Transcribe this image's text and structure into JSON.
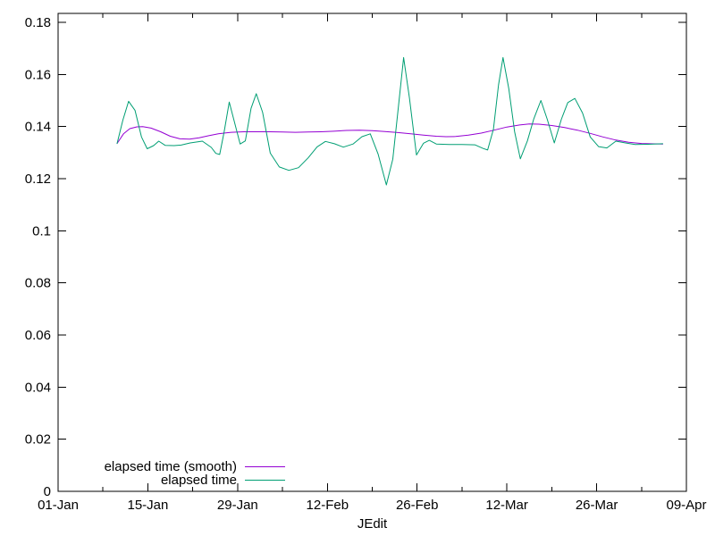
{
  "chart_data": {
    "type": "line",
    "title": "JEdit",
    "title_position": "bottom-center",
    "background": "#ffffff",
    "axis_color": "#000000",
    "grid": false,
    "legend": {
      "position": "bottom-left-inside",
      "entries": [
        "elapsed time (smooth)",
        "elapsed time"
      ]
    },
    "x_axis": {
      "label": "",
      "tick_labels": [
        "01-Jan",
        "15-Jan",
        "29-Jan",
        "12-Feb",
        "26-Feb",
        "12-Mar",
        "26-Mar",
        "09-Apr"
      ],
      "tick_days": [
        0,
        14,
        28,
        42,
        56,
        70,
        84,
        98
      ],
      "minor_tick_days": [
        7,
        21,
        35,
        49,
        63,
        77,
        91
      ],
      "range_days": [
        0,
        98
      ]
    },
    "y_axis": {
      "label": "",
      "tick_labels": [
        "0",
        "0.02",
        "0.04",
        "0.06",
        "0.08",
        "0.1",
        "0.12",
        "0.14",
        "0.16",
        "0.18"
      ],
      "tick_values": [
        0,
        0.02,
        0.04,
        0.06,
        0.08,
        0.1,
        0.12,
        0.14,
        0.16,
        0.18
      ],
      "range": [
        0,
        0.1835
      ]
    },
    "series": [
      {
        "name": "elapsed time (smooth)",
        "color": "#9400d3",
        "points": [
          [
            9.2,
            0.1335
          ],
          [
            10.2,
            0.1372
          ],
          [
            11.2,
            0.1392
          ],
          [
            12.3,
            0.1399
          ],
          [
            13.2,
            0.14
          ],
          [
            14.5,
            0.1394
          ],
          [
            16.0,
            0.138
          ],
          [
            17.5,
            0.1363
          ],
          [
            19.0,
            0.1353
          ],
          [
            20.5,
            0.1352
          ],
          [
            22.0,
            0.1357
          ],
          [
            23.5,
            0.1365
          ],
          [
            25.0,
            0.1372
          ],
          [
            27.0,
            0.1378
          ],
          [
            29.0,
            0.138
          ],
          [
            31.0,
            0.138
          ],
          [
            33.0,
            0.138
          ],
          [
            35.0,
            0.1379
          ],
          [
            37.0,
            0.1378
          ],
          [
            39.0,
            0.1379
          ],
          [
            41.0,
            0.138
          ],
          [
            43.0,
            0.1382
          ],
          [
            45.0,
            0.1385
          ],
          [
            47.0,
            0.1386
          ],
          [
            49.0,
            0.1384
          ],
          [
            51.0,
            0.1381
          ],
          [
            53.0,
            0.1377
          ],
          [
            55.0,
            0.1372
          ],
          [
            57.0,
            0.1367
          ],
          [
            59.0,
            0.1363
          ],
          [
            60.5,
            0.1361
          ],
          [
            62.0,
            0.1362
          ],
          [
            64.0,
            0.1367
          ],
          [
            66.0,
            0.1375
          ],
          [
            68.0,
            0.1386
          ],
          [
            70.0,
            0.1398
          ],
          [
            72.0,
            0.1406
          ],
          [
            73.5,
            0.141
          ],
          [
            75.0,
            0.1409
          ],
          [
            77.0,
            0.1404
          ],
          [
            79.0,
            0.1396
          ],
          [
            81.0,
            0.1386
          ],
          [
            83.0,
            0.1374
          ],
          [
            85.0,
            0.136
          ],
          [
            87.0,
            0.1348
          ],
          [
            89.0,
            0.134
          ],
          [
            91.0,
            0.1335
          ],
          [
            94.3,
            0.1333
          ]
        ]
      },
      {
        "name": "elapsed time",
        "color": "#009e73",
        "points": [
          [
            9.2,
            0.1335
          ],
          [
            10.1,
            0.1425
          ],
          [
            11.0,
            0.1497
          ],
          [
            12.0,
            0.1462
          ],
          [
            13.0,
            0.136
          ],
          [
            13.9,
            0.1315
          ],
          [
            14.9,
            0.1327
          ],
          [
            15.7,
            0.1344
          ],
          [
            16.7,
            0.1328
          ],
          [
            18.1,
            0.1327
          ],
          [
            19.2,
            0.1329
          ],
          [
            20.6,
            0.1337
          ],
          [
            22.5,
            0.1344
          ],
          [
            23.9,
            0.132
          ],
          [
            24.6,
            0.1297
          ],
          [
            25.2,
            0.1293
          ],
          [
            25.9,
            0.138
          ],
          [
            26.7,
            0.1494
          ],
          [
            27.6,
            0.1408
          ],
          [
            28.4,
            0.1333
          ],
          [
            29.2,
            0.1345
          ],
          [
            30.1,
            0.147
          ],
          [
            30.9,
            0.1526
          ],
          [
            31.9,
            0.1455
          ],
          [
            33.1,
            0.1298
          ],
          [
            34.5,
            0.1245
          ],
          [
            36.0,
            0.1232
          ],
          [
            37.5,
            0.1242
          ],
          [
            39.0,
            0.128
          ],
          [
            40.4,
            0.1322
          ],
          [
            41.7,
            0.1343
          ],
          [
            43.1,
            0.1334
          ],
          [
            44.5,
            0.1321
          ],
          [
            46.0,
            0.1333
          ],
          [
            47.4,
            0.1361
          ],
          [
            48.7,
            0.1372
          ],
          [
            49.9,
            0.1295
          ],
          [
            51.2,
            0.1176
          ],
          [
            52.2,
            0.1275
          ],
          [
            53.1,
            0.148
          ],
          [
            53.9,
            0.1665
          ],
          [
            54.8,
            0.151
          ],
          [
            55.9,
            0.1291
          ],
          [
            57.0,
            0.1336
          ],
          [
            57.9,
            0.1347
          ],
          [
            59.0,
            0.1333
          ],
          [
            61.0,
            0.1331
          ],
          [
            63.0,
            0.1331
          ],
          [
            65.0,
            0.133
          ],
          [
            66.3,
            0.1316
          ],
          [
            67.0,
            0.131
          ],
          [
            67.9,
            0.139
          ],
          [
            68.7,
            0.156
          ],
          [
            69.4,
            0.1665
          ],
          [
            70.3,
            0.1545
          ],
          [
            71.2,
            0.138
          ],
          [
            72.1,
            0.1276
          ],
          [
            73.2,
            0.1345
          ],
          [
            74.2,
            0.143
          ],
          [
            75.3,
            0.15
          ],
          [
            76.3,
            0.1428
          ],
          [
            77.4,
            0.1337
          ],
          [
            78.5,
            0.1428
          ],
          [
            79.5,
            0.1492
          ],
          [
            80.6,
            0.1508
          ],
          [
            81.8,
            0.1452
          ],
          [
            83.0,
            0.136
          ],
          [
            84.3,
            0.1323
          ],
          [
            85.6,
            0.1318
          ],
          [
            87.0,
            0.1344
          ],
          [
            88.5,
            0.1337
          ],
          [
            90.0,
            0.1331
          ],
          [
            92.0,
            0.1332
          ],
          [
            94.3,
            0.1334
          ]
        ]
      }
    ]
  }
}
